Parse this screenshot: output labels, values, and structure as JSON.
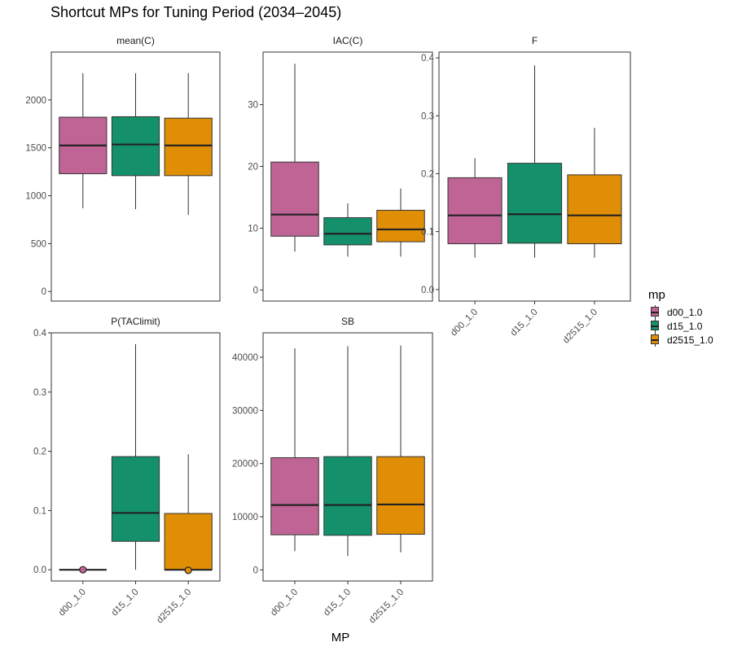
{
  "title": "Shortcut MPs for Tuning Period (2034–2045)",
  "xlabel": "MP",
  "legend": {
    "title": "mp",
    "items": [
      {
        "label": "d00_1.0",
        "color": "#C06496"
      },
      {
        "label": "d15_1.0",
        "color": "#14916A"
      },
      {
        "label": "d2515_1.0",
        "color": "#E08E06"
      }
    ]
  },
  "chart_data": [
    {
      "type": "box",
      "facet": "mean(C)",
      "categories": [
        "d00_1.0",
        "d15_1.0",
        "d2515_1.0"
      ],
      "ylim": [
        -100,
        2500
      ],
      "yticks": [
        0,
        500,
        1000,
        1500,
        2000
      ],
      "boxes": [
        {
          "min": 870,
          "q1": 1230,
          "median": 1525,
          "q3": 1820,
          "max": 2280
        },
        {
          "min": 860,
          "q1": 1210,
          "median": 1535,
          "q3": 1825,
          "max": 2280
        },
        {
          "min": 800,
          "q1": 1210,
          "median": 1525,
          "q3": 1810,
          "max": 2280
        }
      ],
      "show_x_labels": false
    },
    {
      "type": "box",
      "facet": "IAC(C)",
      "categories": [
        "d00_1.0",
        "d15_1.0",
        "d2515_1.0"
      ],
      "ylim": [
        -1.8,
        38.5
      ],
      "yticks": [
        0,
        10,
        20,
        30
      ],
      "boxes": [
        {
          "min": 6.2,
          "q1": 8.7,
          "median": 12.2,
          "q3": 20.7,
          "max": 36.6
        },
        {
          "min": 5.4,
          "q1": 7.3,
          "median": 9.1,
          "q3": 11.7,
          "max": 14.0
        },
        {
          "min": 5.4,
          "q1": 7.8,
          "median": 9.8,
          "q3": 12.9,
          "max": 16.4
        }
      ],
      "show_x_labels": false
    },
    {
      "type": "box",
      "facet": "F",
      "categories": [
        "d00_1.0",
        "d15_1.0",
        "d2515_1.0"
      ],
      "ylim": [
        -0.02,
        0.41
      ],
      "yticks": [
        0.0,
        0.1,
        0.2,
        0.3,
        0.4
      ],
      "ytick_labels": [
        "0.0",
        "0.1",
        "0.2",
        "0.3",
        "0.4"
      ],
      "boxes": [
        {
          "min": 0.055,
          "q1": 0.079,
          "median": 0.128,
          "q3": 0.193,
          "max": 0.227
        },
        {
          "min": 0.055,
          "q1": 0.08,
          "median": 0.13,
          "q3": 0.218,
          "max": 0.387
        },
        {
          "min": 0.055,
          "q1": 0.079,
          "median": 0.128,
          "q3": 0.198,
          "max": 0.279
        }
      ],
      "show_x_labels": true
    },
    {
      "type": "box",
      "facet": "P(TAClimit)",
      "categories": [
        "d00_1.0",
        "d15_1.0",
        "d2515_1.0"
      ],
      "ylim": [
        -0.019,
        0.4
      ],
      "yticks": [
        0.0,
        0.1,
        0.2,
        0.3,
        0.4
      ],
      "ytick_labels": [
        "0.0",
        "0.1",
        "0.2",
        "0.3",
        "0.4"
      ],
      "boxes": [
        {
          "min": 0.0,
          "q1": 0.0,
          "median": 0.0,
          "q3": 0.0,
          "max": 0.0,
          "outliers": [
            0.0
          ]
        },
        {
          "min": 0.0,
          "q1": 0.048,
          "median": 0.096,
          "q3": 0.191,
          "max": 0.381
        },
        {
          "min": 0.0,
          "q1": 0.0,
          "median": 0.0,
          "q3": 0.095,
          "max": 0.195,
          "outliers": [
            -0.001
          ]
        }
      ],
      "show_x_labels": true
    },
    {
      "type": "box",
      "facet": "SB",
      "categories": [
        "d00_1.0",
        "d15_1.0",
        "d2515_1.0"
      ],
      "ylim": [
        -2100,
        44600
      ],
      "yticks": [
        0,
        10000,
        20000,
        30000,
        40000
      ],
      "boxes": [
        {
          "min": 3500,
          "q1": 6600,
          "median": 12200,
          "q3": 21100,
          "max": 41700
        },
        {
          "min": 2600,
          "q1": 6500,
          "median": 12200,
          "q3": 21300,
          "max": 42100
        },
        {
          "min": 3300,
          "q1": 6700,
          "median": 12300,
          "q3": 21300,
          "max": 42200
        }
      ],
      "show_x_labels": true
    }
  ]
}
